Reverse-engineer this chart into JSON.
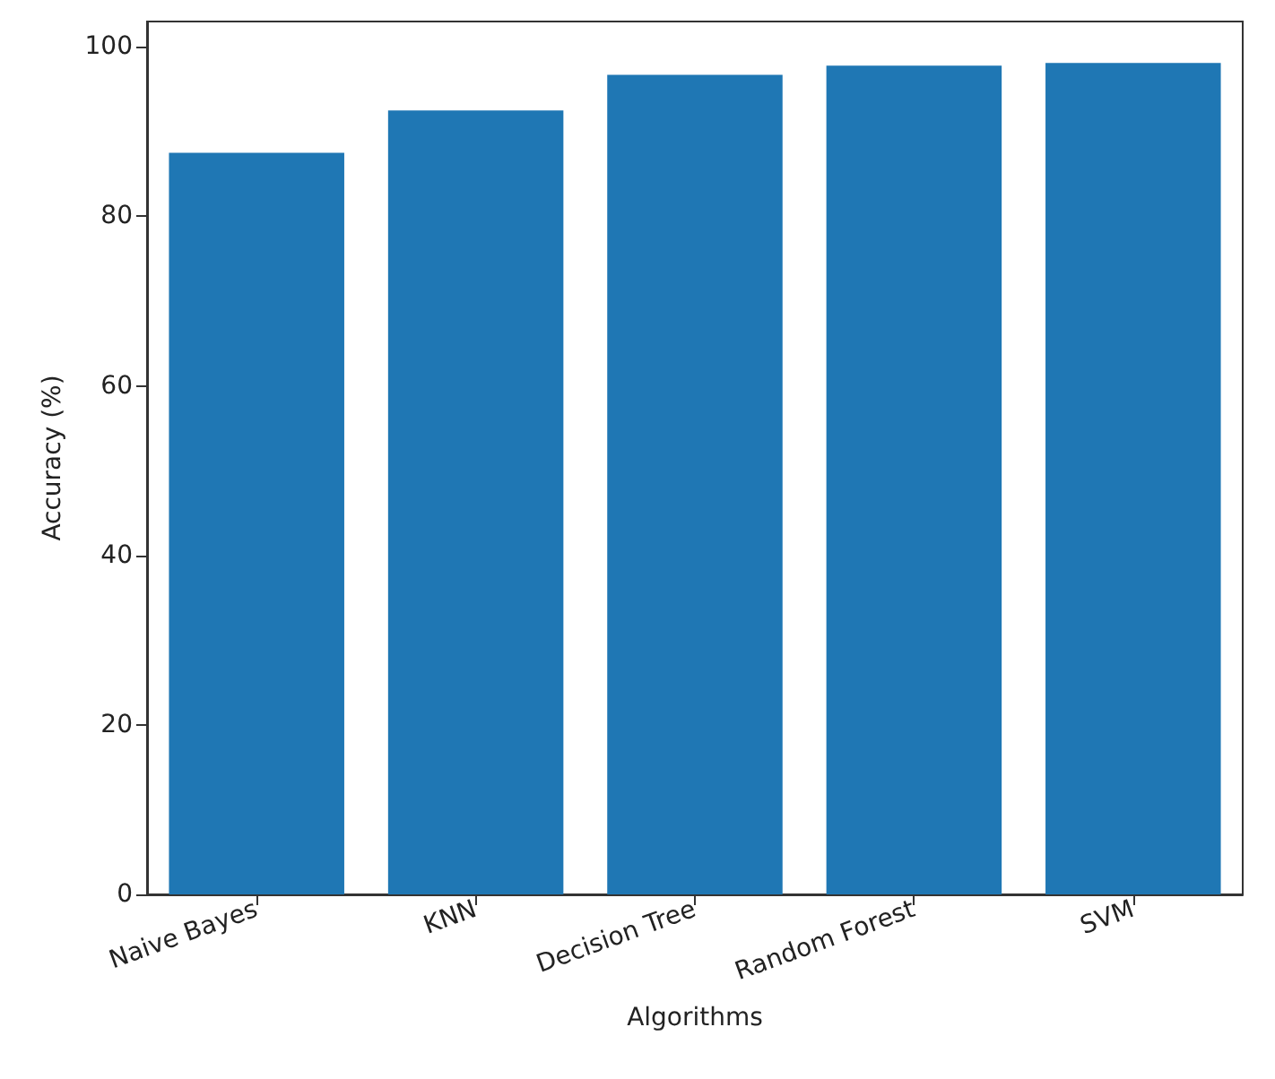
{
  "chart_data": {
    "type": "bar",
    "xlabel": "Algorithms",
    "ylabel": "Accuracy (%)",
    "categories": [
      "Naive Bayes",
      "KNN",
      "Decision Tree",
      "Random Forest",
      "SVM"
    ],
    "values": [
      87.5,
      92.5,
      96.7,
      97.8,
      98.1
    ],
    "color": "#1f77b4",
    "ylim": [
      0,
      103
    ],
    "yticks": [
      0,
      20,
      40,
      60,
      80,
      100
    ],
    "grid": false
  }
}
